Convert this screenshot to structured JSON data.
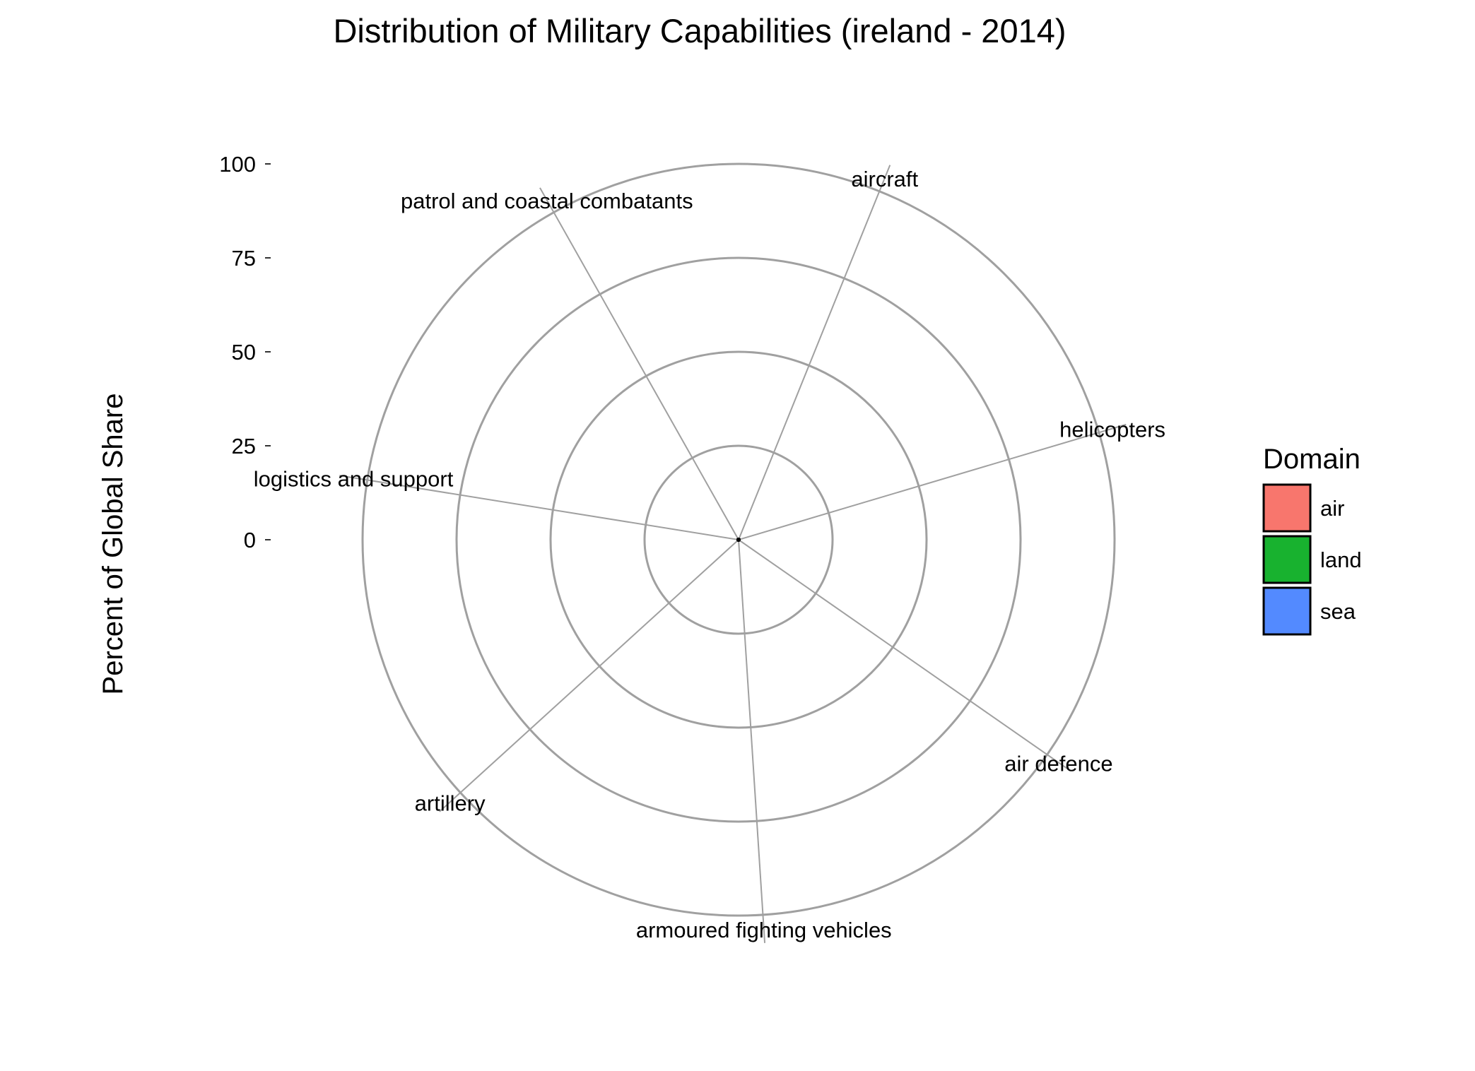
{
  "chart_data": {
    "type": "radar",
    "title": "Distribution of Military Capabilities (ireland - 2014)",
    "xlabel": "",
    "ylabel": "Percent of Global Share",
    "ylim": [
      0,
      100
    ],
    "y_ticks": [
      0,
      25,
      50,
      75,
      100
    ],
    "grid": true,
    "categories": [
      "aircraft",
      "helicopters",
      "air defence",
      "armoured fighting vehicles",
      "artillery",
      "logistics and support",
      "patrol and coastal combatants"
    ],
    "category_domain": [
      "air",
      "air",
      "air",
      "land",
      "land",
      "sea",
      "sea"
    ],
    "values": [
      0,
      0,
      0,
      0,
      0,
      0,
      0
    ],
    "legend": {
      "title": "Domain",
      "position": "right",
      "items": [
        {
          "label": "air",
          "color": "#F8766D"
        },
        {
          "label": "land",
          "color": "#18B22F"
        },
        {
          "label": "sea",
          "color": "#538AFF"
        }
      ]
    },
    "colors": {
      "grid": "#A0A0A0",
      "background": "#FFFFFF"
    }
  }
}
